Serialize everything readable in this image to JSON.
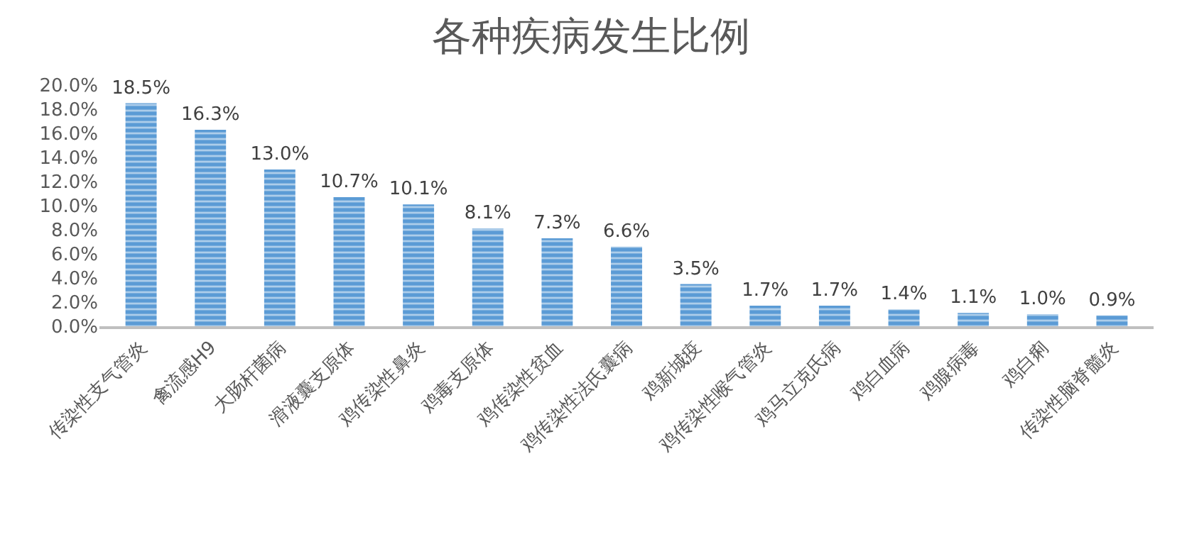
{
  "chart_data": {
    "type": "bar",
    "title": "各种疾病发生比例",
    "categories": [
      "传染性支气管炎",
      "禽流感H9",
      "大肠杆菌病",
      "滑液囊支原体",
      "鸡传染性鼻炎",
      "鸡毒支原体",
      "鸡传染性贫血",
      "鸡传染性法氏囊病",
      "鸡新城疫",
      "鸡传染性喉气管炎",
      "鸡马立克氏病",
      "鸡白血病",
      "鸡腺病毒",
      "鸡白痢",
      "传染性脑脊髓炎"
    ],
    "values": [
      18.5,
      16.3,
      13.0,
      10.7,
      10.1,
      8.1,
      7.3,
      6.6,
      3.5,
      1.7,
      1.7,
      1.4,
      1.1,
      1.0,
      0.9
    ],
    "value_labels": [
      "18.5%",
      "16.3%",
      "13.0%",
      "10.7%",
      "10.1%",
      "8.1%",
      "7.3%",
      "6.6%",
      "3.5%",
      "1.7%",
      "1.7%",
      "1.4%",
      "1.1%",
      "1.0%",
      "0.9%"
    ],
    "color": "#5b9bd5",
    "ylim": [
      0,
      20
    ],
    "yticks": [
      {
        "value": 0,
        "label": "0.0%"
      },
      {
        "value": 2,
        "label": "2.0%"
      },
      {
        "value": 4,
        "label": "4.0%"
      },
      {
        "value": 6,
        "label": "6.0%"
      },
      {
        "value": 8,
        "label": "8.0%"
      },
      {
        "value": 10,
        "label": "10.0%"
      },
      {
        "value": 12,
        "label": "12.0%"
      },
      {
        "value": 14,
        "label": "14.0%"
      },
      {
        "value": 16,
        "label": "16.0%"
      },
      {
        "value": 18,
        "label": "18.0%"
      },
      {
        "value": 20,
        "label": "20.0%"
      }
    ]
  }
}
